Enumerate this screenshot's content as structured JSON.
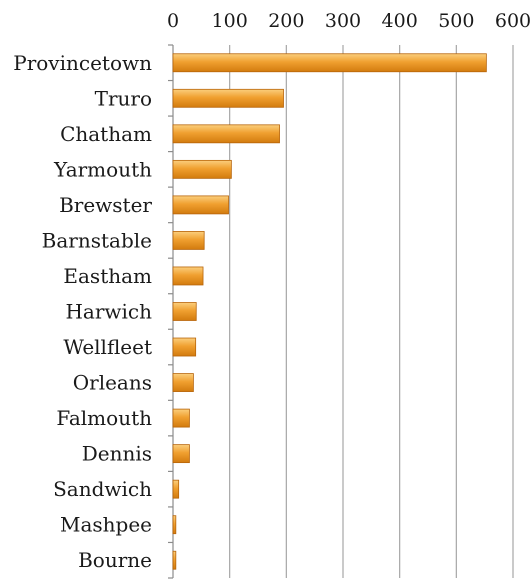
{
  "chart_data": {
    "type": "bar",
    "orientation": "horizontal",
    "title": "",
    "xlabel": "",
    "ylabel": "",
    "xlim": [
      0,
      600
    ],
    "ticks": [
      0,
      100,
      200,
      300,
      400,
      500,
      600
    ],
    "tick_labels": [
      "0",
      "100",
      "200",
      "300",
      "400",
      "500",
      "600"
    ],
    "x_axis_position": "top",
    "grid": true,
    "legend": "none",
    "categories": [
      "Provincetown",
      "Truro",
      "Chatham",
      "Yarmouth",
      "Brewster",
      "Barnstable",
      "Eastham",
      "Harwich",
      "Wellfleet",
      "Orleans",
      "Falmouth",
      "Dennis",
      "Sandwich",
      "Mashpee",
      "Bourne"
    ],
    "values": [
      553,
      195,
      188,
      103,
      98,
      55,
      53,
      41,
      40,
      36,
      29,
      29,
      10,
      5,
      5
    ],
    "colors": {
      "bar_fill": "#f0a030",
      "bar_highlight": "#fbcf7e",
      "bar_shade": "#d27b0e",
      "bar_stroke": "#b8650a",
      "grid": "#a6a6a6",
      "axis": "#8c8c8c",
      "text": "#1a1a1a"
    }
  }
}
